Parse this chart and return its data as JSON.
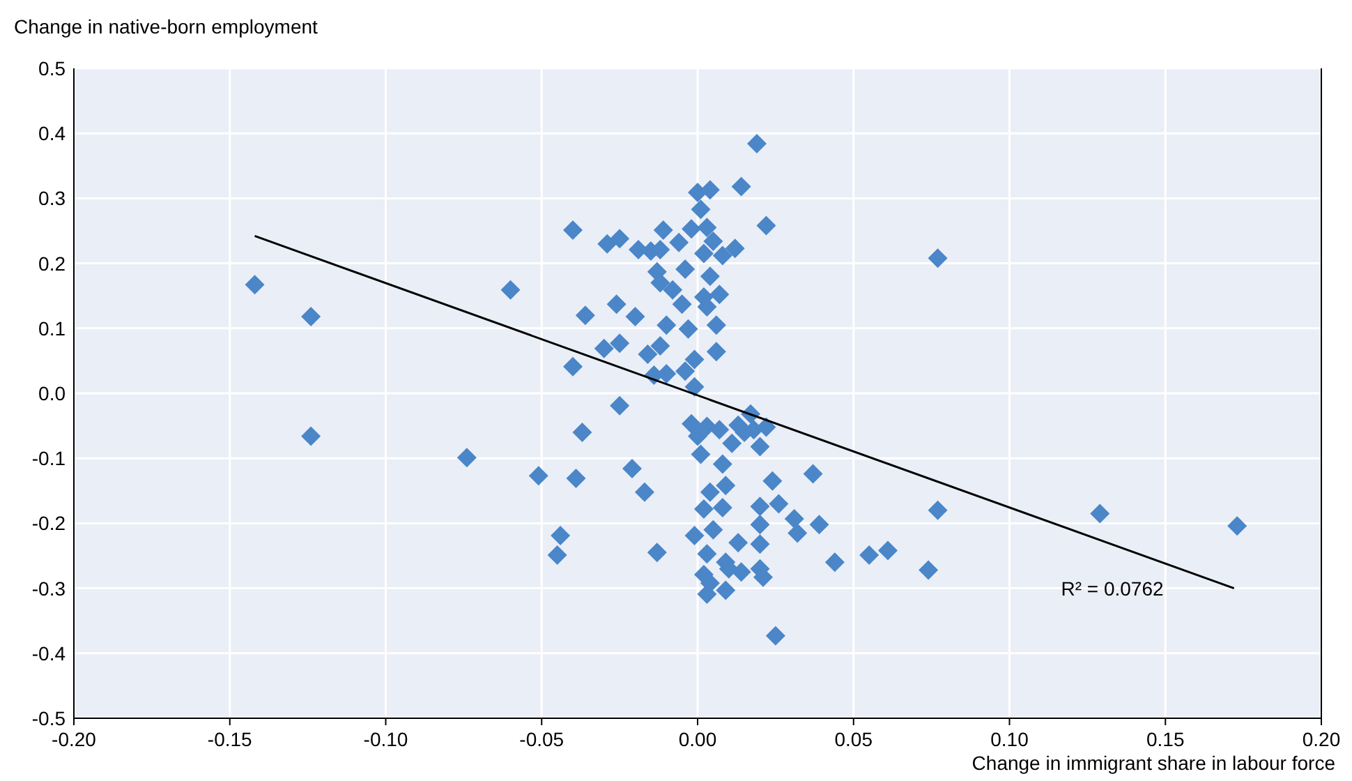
{
  "chart_data": {
    "type": "scatter",
    "xlabel": "Change in immigrant share in labour force",
    "ylabel": "Change in native-born employment",
    "xlim": [
      -0.2,
      0.2
    ],
    "xticks": [
      {
        "value": -0.2,
        "label": "-0.20"
      },
      -0.15,
      {
        "value": -0.1,
        "label": "-0.10"
      },
      -0.05,
      {
        "value": 0,
        "label": "0.00"
      },
      0.05,
      {
        "value": 0.1,
        "label": "0.10"
      },
      0.15,
      {
        "value": 0.2,
        "label": "0.20"
      }
    ],
    "ylim": [
      -0.5,
      0.5
    ],
    "yticks": [
      -0.5,
      -0.4,
      -0.3,
      -0.2,
      -0.1,
      {
        "value": 0,
        "label": "0.0"
      },
      0.1,
      0.2,
      0.3,
      0.4,
      0.5
    ],
    "grid": true,
    "marker": "diamond",
    "series": [
      {
        "color": "#4a86c8",
        "x": [
          -0.142,
          -0.124,
          -0.124,
          -0.074,
          -0.06,
          -0.051,
          -0.04,
          -0.04,
          -0.039,
          -0.037,
          -0.036,
          -0.044,
          -0.045,
          -0.03,
          -0.029,
          -0.025,
          -0.026,
          -0.025,
          -0.025,
          -0.021,
          -0.02,
          -0.019,
          -0.017,
          -0.013,
          -0.015,
          -0.011,
          -0.012,
          -0.01,
          -0.016,
          -0.014,
          -0.013,
          -0.012,
          -0.01,
          -0.012,
          -0.008,
          -0.006,
          -0.005,
          -0.004,
          -0.004,
          -0.003,
          -0.002,
          -0.001,
          -0.002,
          -0.001,
          0.0,
          0.001,
          0.002,
          0.002,
          0.003,
          0.004,
          0.004,
          0.003,
          0.0,
          0.001,
          0.003,
          0.002,
          0.003,
          0.002,
          0.003,
          0.004,
          0.004,
          0.005,
          0.006,
          0.007,
          0.007,
          0.008,
          0.008,
          0.009,
          0.009,
          0.008,
          0.009,
          0.01,
          0.011,
          0.012,
          0.013,
          0.013,
          0.014,
          0.014,
          0.015,
          0.017,
          0.018,
          0.019,
          0.02,
          0.02,
          0.02,
          0.02,
          0.021,
          0.02,
          0.022,
          0.022,
          0.024,
          0.025,
          0.026,
          0.031,
          0.032,
          0.037,
          0.039,
          0.044,
          0.055,
          0.061,
          0.074,
          0.077,
          0.077,
          0.129,
          0.173,
          0.005,
          0.006,
          -0.001
        ],
        "values": [
          0.167,
          0.118,
          -0.066,
          -0.099,
          0.159,
          -0.127,
          0.251,
          0.041,
          -0.131,
          -0.06,
          0.12,
          -0.219,
          -0.249,
          0.069,
          0.23,
          0.238,
          0.137,
          0.077,
          -0.019,
          -0.116,
          0.118,
          0.221,
          -0.152,
          -0.245,
          0.219,
          0.251,
          0.221,
          0.105,
          0.06,
          0.028,
          0.187,
          0.073,
          0.03,
          0.17,
          0.159,
          0.232,
          0.137,
          0.191,
          0.034,
          0.099,
          0.253,
          0.052,
          -0.047,
          -0.219,
          0.309,
          0.283,
          0.215,
          0.148,
          0.255,
          0.313,
          0.18,
          0.133,
          -0.066,
          -0.094,
          -0.051,
          -0.178,
          -0.247,
          -0.279,
          -0.309,
          -0.292,
          -0.152,
          -0.21,
          0.064,
          0.152,
          -0.056,
          -0.109,
          0.212,
          -0.142,
          -0.303,
          -0.176,
          -0.26,
          -0.27,
          -0.077,
          0.223,
          -0.23,
          -0.049,
          -0.275,
          0.318,
          -0.06,
          -0.032,
          -0.056,
          0.384,
          -0.082,
          -0.174,
          -0.202,
          -0.232,
          -0.283,
          -0.27,
          0.258,
          -0.052,
          -0.135,
          -0.373,
          -0.17,
          -0.193,
          -0.215,
          -0.124,
          -0.202,
          -0.26,
          -0.249,
          -0.242,
          -0.272,
          0.208,
          -0.18,
          -0.185,
          -0.204,
          0.234,
          0.105,
          0.01
        ]
      },
      {
        "type": "line",
        "color": "#000000",
        "marker": "none",
        "x": [
          -0.142,
          0.172
        ],
        "values": [
          0.242,
          -0.3
        ]
      }
    ],
    "annotations": [
      "R² = 0.0762"
    ]
  }
}
